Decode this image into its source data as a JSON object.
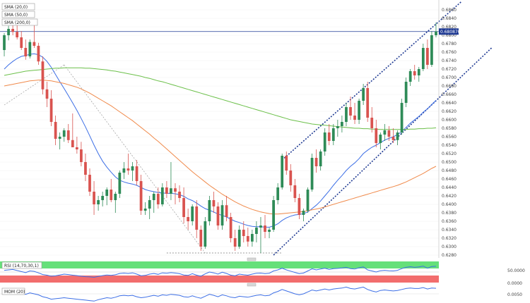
{
  "chart_data": {
    "type": "candlestick",
    "title": "",
    "ylim": [
      0.628,
      0.688
    ],
    "y_ticks": [
      "0.6860",
      "0.6840",
      "0.6820",
      "0.6800",
      "0.6780",
      "0.6760",
      "0.6740",
      "0.6720",
      "0.6700",
      "0.6680",
      "0.6660",
      "0.6640",
      "0.6620",
      "0.6600",
      "0.6580",
      "0.6560",
      "0.6540",
      "0.6520",
      "0.6500",
      "0.6480",
      "0.6460",
      "0.6440",
      "0.6420",
      "0.6400",
      "0.6380",
      "0.6360",
      "0.6340",
      "0.6320",
      "0.6300",
      "0.6280"
    ],
    "current_price": "0.680870",
    "indicator_labels": [
      "SMA (20,0)",
      "SMA (50,0)",
      "SMA (200,0)"
    ],
    "sma_colors": [
      "#3d6fe6",
      "#f08a4b",
      "#6cc04a"
    ],
    "up_color": "#2e8b57",
    "down_color": "#d9534f",
    "ohlc": [
      [
        0.6765,
        0.6805,
        0.675,
        0.68
      ],
      [
        0.68,
        0.6822,
        0.6788,
        0.6815
      ],
      [
        0.6815,
        0.683,
        0.68,
        0.6808
      ],
      [
        0.6808,
        0.6826,
        0.679,
        0.6795
      ],
      [
        0.6795,
        0.681,
        0.6765,
        0.677
      ],
      [
        0.677,
        0.679,
        0.6742,
        0.675
      ],
      [
        0.675,
        0.679,
        0.6745,
        0.6784
      ],
      [
        0.6784,
        0.6824,
        0.677,
        0.6775
      ],
      [
        0.6775,
        0.6782,
        0.673,
        0.6738
      ],
      [
        0.6738,
        0.675,
        0.666,
        0.6672
      ],
      [
        0.6672,
        0.669,
        0.663,
        0.665
      ],
      [
        0.665,
        0.667,
        0.6585,
        0.6595
      ],
      [
        0.6595,
        0.661,
        0.654,
        0.6555
      ],
      [
        0.6555,
        0.657,
        0.653,
        0.656
      ],
      [
        0.656,
        0.658,
        0.6548,
        0.6575
      ],
      [
        0.6575,
        0.659,
        0.6545,
        0.6552
      ],
      [
        0.6552,
        0.6615,
        0.654,
        0.6535
      ],
      [
        0.6535,
        0.656,
        0.652,
        0.653
      ],
      [
        0.653,
        0.6548,
        0.649,
        0.65
      ],
      [
        0.65,
        0.652,
        0.6455,
        0.647
      ],
      [
        0.647,
        0.6485,
        0.642,
        0.643
      ],
      [
        0.643,
        0.6455,
        0.6375,
        0.64
      ],
      [
        0.64,
        0.642,
        0.6385,
        0.641
      ],
      [
        0.641,
        0.643,
        0.6395,
        0.642
      ],
      [
        0.642,
        0.644,
        0.6398,
        0.6435
      ],
      [
        0.6435,
        0.646,
        0.6405,
        0.641
      ],
      [
        0.641,
        0.643,
        0.638,
        0.6425
      ],
      [
        0.6425,
        0.648,
        0.6415,
        0.6475
      ],
      [
        0.6475,
        0.65,
        0.646,
        0.6485
      ],
      [
        0.6485,
        0.652,
        0.647,
        0.648
      ],
      [
        0.648,
        0.65,
        0.6455,
        0.649
      ],
      [
        0.649,
        0.6505,
        0.6445,
        0.6455
      ],
      [
        0.6455,
        0.647,
        0.6375,
        0.6385
      ],
      [
        0.6385,
        0.6405,
        0.6375,
        0.639
      ],
      [
        0.639,
        0.642,
        0.6365,
        0.641
      ],
      [
        0.641,
        0.643,
        0.638,
        0.6425
      ],
      [
        0.6425,
        0.644,
        0.639,
        0.64
      ],
      [
        0.64,
        0.645,
        0.6395,
        0.644
      ],
      [
        0.644,
        0.6455,
        0.6415,
        0.6425
      ],
      [
        0.6425,
        0.65,
        0.641,
        0.6438
      ],
      [
        0.6438,
        0.645,
        0.64,
        0.643
      ],
      [
        0.643,
        0.6445,
        0.6405,
        0.6415
      ],
      [
        0.6415,
        0.644,
        0.6355,
        0.637
      ],
      [
        0.637,
        0.639,
        0.634,
        0.636
      ],
      [
        0.636,
        0.64,
        0.635,
        0.6395
      ],
      [
        0.6395,
        0.641,
        0.632,
        0.634
      ],
      [
        0.634,
        0.635,
        0.629,
        0.63
      ],
      [
        0.63,
        0.637,
        0.6295,
        0.636
      ],
      [
        0.636,
        0.642,
        0.635,
        0.641
      ],
      [
        0.641,
        0.643,
        0.638,
        0.6395
      ],
      [
        0.6395,
        0.6405,
        0.634,
        0.635
      ],
      [
        0.635,
        0.641,
        0.634,
        0.6398
      ],
      [
        0.6398,
        0.642,
        0.636,
        0.637
      ],
      [
        0.637,
        0.638,
        0.631,
        0.632
      ],
      [
        0.632,
        0.634,
        0.629,
        0.63
      ],
      [
        0.63,
        0.635,
        0.6295,
        0.634
      ],
      [
        0.634,
        0.636,
        0.631,
        0.6325
      ],
      [
        0.6325,
        0.6345,
        0.63,
        0.6312
      ],
      [
        0.6312,
        0.634,
        0.63,
        0.633
      ],
      [
        0.633,
        0.636,
        0.631,
        0.6345
      ],
      [
        0.6345,
        0.637,
        0.6285,
        0.635
      ],
      [
        0.635,
        0.6375,
        0.632,
        0.6335
      ],
      [
        0.6335,
        0.6345,
        0.632,
        0.634
      ],
      [
        0.634,
        0.642,
        0.6335,
        0.641
      ],
      [
        0.641,
        0.645,
        0.64,
        0.644
      ],
      [
        0.644,
        0.652,
        0.6435,
        0.6515
      ],
      [
        0.6515,
        0.6525,
        0.647,
        0.648
      ],
      [
        0.648,
        0.6495,
        0.643,
        0.6445
      ],
      [
        0.6445,
        0.646,
        0.6405,
        0.6415
      ],
      [
        0.6415,
        0.6425,
        0.6365,
        0.6375
      ],
      [
        0.6375,
        0.639,
        0.636,
        0.6385
      ],
      [
        0.6385,
        0.644,
        0.638,
        0.6435
      ],
      [
        0.6435,
        0.652,
        0.643,
        0.651
      ],
      [
        0.651,
        0.653,
        0.6475,
        0.649
      ],
      [
        0.649,
        0.653,
        0.648,
        0.6525
      ],
      [
        0.6525,
        0.658,
        0.6515,
        0.657
      ],
      [
        0.657,
        0.659,
        0.654,
        0.655
      ],
      [
        0.655,
        0.659,
        0.654,
        0.658
      ],
      [
        0.658,
        0.66,
        0.656,
        0.6585
      ],
      [
        0.6585,
        0.661,
        0.657,
        0.6595
      ],
      [
        0.6595,
        0.664,
        0.6585,
        0.663
      ],
      [
        0.663,
        0.6655,
        0.66,
        0.661
      ],
      [
        0.661,
        0.664,
        0.659,
        0.66
      ],
      [
        0.66,
        0.665,
        0.659,
        0.6645
      ],
      [
        0.6645,
        0.6685,
        0.6635,
        0.6675
      ],
      [
        0.6675,
        0.669,
        0.6595,
        0.6605
      ],
      [
        0.6605,
        0.663,
        0.657,
        0.658
      ],
      [
        0.658,
        0.66,
        0.6535,
        0.6545
      ],
      [
        0.6545,
        0.657,
        0.653,
        0.6565
      ],
      [
        0.6565,
        0.659,
        0.655,
        0.6575
      ],
      [
        0.6575,
        0.6585,
        0.655,
        0.656
      ],
      [
        0.656,
        0.658,
        0.6545,
        0.6552
      ],
      [
        0.6552,
        0.6575,
        0.654,
        0.657
      ],
      [
        0.657,
        0.665,
        0.6565,
        0.664
      ],
      [
        0.664,
        0.67,
        0.663,
        0.669
      ],
      [
        0.669,
        0.672,
        0.668,
        0.6715
      ],
      [
        0.6715,
        0.673,
        0.6695,
        0.6705
      ],
      [
        0.6705,
        0.6725,
        0.669,
        0.672
      ],
      [
        0.672,
        0.678,
        0.6715,
        0.677
      ],
      [
        0.677,
        0.679,
        0.672,
        0.673
      ],
      [
        0.673,
        0.681,
        0.6725,
        0.68
      ],
      [
        0.68,
        0.683,
        0.6795,
        0.6809
      ]
    ],
    "sma20": [
      0.672,
      0.673,
      0.6738,
      0.6745,
      0.675,
      0.6752,
      0.6755,
      0.6756,
      0.6754,
      0.6748,
      0.6738,
      0.6724,
      0.6707,
      0.669,
      0.6674,
      0.6657,
      0.664,
      0.6622,
      0.6603,
      0.6583,
      0.6562,
      0.654,
      0.652,
      0.6502,
      0.6488,
      0.6476,
      0.6465,
      0.6457,
      0.6453,
      0.645,
      0.6448,
      0.6445,
      0.644,
      0.6435,
      0.6432,
      0.643,
      0.6428,
      0.6427,
      0.6426,
      0.6426,
      0.6425,
      0.6423,
      0.6419,
      0.6413,
      0.6409,
      0.6403,
      0.6396,
      0.639,
      0.6386,
      0.6382,
      0.6377,
      0.6374,
      0.637,
      0.6365,
      0.636,
      0.6357,
      0.6353,
      0.635,
      0.6348,
      0.6347,
      0.6347,
      0.6346,
      0.6346,
      0.6349,
      0.6354,
      0.6362,
      0.6368,
      0.6372,
      0.6375,
      0.6376,
      0.6378,
      0.6382,
      0.639,
      0.6398,
      0.6408,
      0.642,
      0.6432,
      0.6445,
      0.6457,
      0.6468,
      0.648,
      0.649,
      0.6498,
      0.6508,
      0.652,
      0.6528,
      0.6535,
      0.654,
      0.6546,
      0.6552,
      0.6556,
      0.656,
      0.6565,
      0.6572,
      0.6582,
      0.6592,
      0.66,
      0.6608,
      0.6618,
      0.6626,
      0.6636,
      0.6646
    ],
    "sma50": [
      0.668,
      0.6682,
      0.6684,
      0.6686,
      0.6688,
      0.669,
      0.6692,
      0.6693,
      0.6694,
      0.6694,
      0.6693,
      0.6692,
      0.669,
      0.6688,
      0.6686,
      0.6683,
      0.668,
      0.6677,
      0.6673,
      0.6668,
      0.6663,
      0.6657,
      0.6651,
      0.6645,
      0.6639,
      0.6633,
      0.6626,
      0.6619,
      0.6612,
      0.6605,
      0.6598,
      0.659,
      0.6582,
      0.6574,
      0.6566,
      0.6557,
      0.6549,
      0.654,
      0.6531,
      0.6522,
      0.6513,
      0.6504,
      0.6495,
      0.6486,
      0.6477,
      0.6469,
      0.6461,
      0.6453,
      0.6445,
      0.6438,
      0.6431,
      0.6424,
      0.6418,
      0.6412,
      0.6406,
      0.6401,
      0.6396,
      0.6392,
      0.6388,
      0.6385,
      0.6382,
      0.638,
      0.6378,
      0.6377,
      0.6377,
      0.6378,
      0.6379,
      0.638,
      0.6381,
      0.6382,
      0.6383,
      0.6385,
      0.6387,
      0.6389,
      0.6391,
      0.6394,
      0.6397,
      0.64,
      0.6403,
      0.6406,
      0.6409,
      0.6412,
      0.6415,
      0.6418,
      0.6421,
      0.6424,
      0.6427,
      0.643,
      0.6433,
      0.6436,
      0.6439,
      0.6442,
      0.6445,
      0.6449,
      0.6453,
      0.6458,
      0.6463,
      0.6468,
      0.6473,
      0.6479,
      0.6485,
      0.649
    ],
    "sma200": [
      0.6705,
      0.6707,
      0.6709,
      0.6711,
      0.6713,
      0.6715,
      0.6716,
      0.6717,
      0.6718,
      0.6719,
      0.672,
      0.6721,
      0.6722,
      0.6722,
      0.6723,
      0.6723,
      0.6723,
      0.6723,
      0.6723,
      0.6722,
      0.6722,
      0.6721,
      0.672,
      0.6719,
      0.6718,
      0.6716,
      0.6715,
      0.6713,
      0.6711,
      0.6709,
      0.6707,
      0.6705,
      0.6703,
      0.67,
      0.6698,
      0.6695,
      0.6692,
      0.669,
      0.6687,
      0.6684,
      0.6681,
      0.6678,
      0.6675,
      0.6672,
      0.6669,
      0.6666,
      0.6663,
      0.666,
      0.6657,
      0.6654,
      0.6651,
      0.6648,
      0.6645,
      0.6642,
      0.6639,
      0.6636,
      0.6633,
      0.663,
      0.6627,
      0.6624,
      0.6621,
      0.6618,
      0.6615,
      0.6612,
      0.6609,
      0.6606,
      0.6603,
      0.66,
      0.6598,
      0.6596,
      0.6594,
      0.6592,
      0.659,
      0.6589,
      0.6588,
      0.6587,
      0.6586,
      0.6585,
      0.6584,
      0.6583,
      0.6582,
      0.6581,
      0.658,
      0.658,
      0.6579,
      0.6579,
      0.6578,
      0.6578,
      0.6577,
      0.6577,
      0.6577,
      0.6577,
      0.6577,
      0.6577,
      0.6577,
      0.6578,
      0.6578,
      0.6579,
      0.6579,
      0.658,
      0.658,
      0.6581
    ],
    "channel_upper": [
      [
        65,
        0.6505
      ],
      [
        107,
        0.688
      ]
    ],
    "channel_lower": [
      [
        63,
        0.628
      ],
      [
        114,
        0.677
      ]
    ],
    "decline_line": [
      [
        0,
        0.6635
      ],
      [
        14,
        0.673
      ],
      [
        47,
        0.6285
      ]
    ],
    "support_line": [
      [
        38,
        0.6285
      ],
      [
        65,
        0.6285
      ]
    ],
    "rsi": {
      "label": "RSI (14,70,30,1)",
      "tick": "50.0000",
      "values": [
        58,
        60,
        62,
        57,
        52,
        47,
        55,
        53,
        46,
        38,
        35,
        30,
        32,
        36,
        40,
        38,
        35,
        33,
        30,
        28,
        27,
        25,
        29,
        33,
        36,
        34,
        37,
        43,
        45,
        43,
        46,
        40,
        32,
        34,
        40,
        43,
        39,
        46,
        44,
        47,
        45,
        42,
        36,
        34,
        42,
        35,
        30,
        41,
        50,
        46,
        40,
        49,
        43,
        35,
        32,
        40,
        37,
        35,
        40,
        44,
        45,
        42,
        44,
        55,
        60,
        68,
        60,
        54,
        48,
        42,
        45,
        55,
        65,
        60,
        64,
        68,
        62,
        66,
        67,
        69,
        72,
        66,
        64,
        70,
        74,
        60,
        55,
        50,
        56,
        58,
        56,
        55,
        58,
        66,
        72,
        75,
        72,
        74,
        78,
        68,
        76,
        77
      ]
    },
    "momentum": {
      "label": "MOM (20)",
      "ticks": [
        "0.0000",
        "0.0050"
      ],
      "values": [
        0.004,
        0.0045,
        0.005,
        0.003,
        0.001,
        -0.001,
        0.002,
        0.0,
        -0.002,
        -0.006,
        -0.008,
        -0.011,
        -0.01,
        -0.009,
        -0.008,
        -0.009,
        -0.01,
        -0.011,
        -0.012,
        -0.013,
        -0.014,
        -0.015,
        -0.012,
        -0.01,
        -0.008,
        -0.009,
        -0.007,
        -0.004,
        -0.003,
        -0.004,
        -0.003,
        -0.006,
        -0.008,
        -0.007,
        -0.005,
        -0.003,
        -0.005,
        -0.002,
        -0.003,
        -0.001,
        -0.002,
        -0.003,
        -0.006,
        -0.007,
        -0.004,
        -0.007,
        -0.009,
        -0.005,
        -0.001,
        -0.003,
        -0.006,
        -0.002,
        -0.004,
        -0.007,
        -0.008,
        -0.005,
        -0.006,
        -0.007,
        -0.005,
        -0.003,
        -0.002,
        -0.004,
        -0.003,
        0.002,
        0.005,
        0.009,
        0.006,
        0.003,
        0.0,
        -0.002,
        0.0,
        0.004,
        0.008,
        0.006,
        0.008,
        0.01,
        0.008,
        0.01,
        0.011,
        0.012,
        0.014,
        0.011,
        0.01,
        0.012,
        0.014,
        0.009,
        0.006,
        0.004,
        0.007,
        0.008,
        0.007,
        0.006,
        0.007,
        0.009,
        0.011,
        0.012,
        0.011,
        0.011,
        0.013,
        0.01,
        0.012,
        0.0115
      ]
    }
  }
}
